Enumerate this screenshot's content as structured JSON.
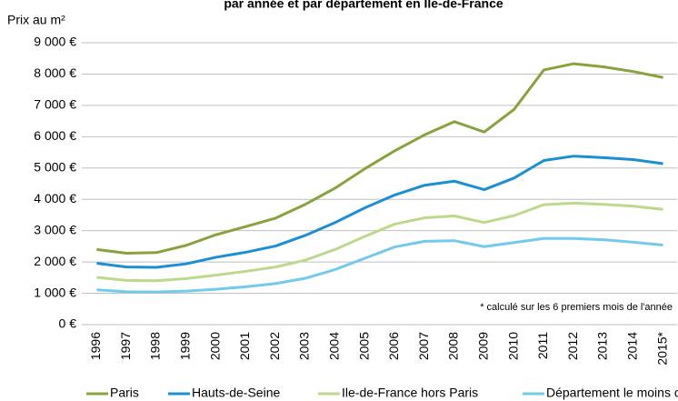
{
  "chart_data": {
    "type": "line",
    "title": "par année et par département en Ile-de-France",
    "y_label": "Prix au m²",
    "annotation": "* calculé sur les 6 premiers mois  de l'année",
    "categories": [
      "1996",
      "1997",
      "1998",
      "1999",
      "2000",
      "2001",
      "2002",
      "2003",
      "2004",
      "2005",
      "2006",
      "2007",
      "2008",
      "2009",
      "2010",
      "2011",
      "2012",
      "2013",
      "2014",
      "2015*"
    ],
    "series": [
      {
        "name": "Paris",
        "color": "#8aa23c",
        "values": [
          2400,
          2280,
          2300,
          2530,
          2870,
          3130,
          3400,
          3840,
          4360,
          4980,
          5550,
          6060,
          6480,
          6150,
          6870,
          8130,
          8330,
          8230,
          8080,
          7890
        ]
      },
      {
        "name": "Hauts-de-Seine",
        "color": "#1b8fd2",
        "values": [
          1960,
          1840,
          1830,
          1940,
          2150,
          2310,
          2510,
          2850,
          3260,
          3730,
          4140,
          4450,
          4580,
          4310,
          4680,
          5240,
          5380,
          5330,
          5270,
          5140
        ]
      },
      {
        "name": "Ile-de-France hors Paris",
        "color": "#bdd98c",
        "values": [
          1510,
          1410,
          1400,
          1470,
          1580,
          1700,
          1840,
          2060,
          2400,
          2820,
          3210,
          3410,
          3470,
          3260,
          3480,
          3830,
          3880,
          3840,
          3780,
          3680
        ]
      },
      {
        "name": "Département le moins cher",
        "color": "#72cbeb",
        "values": [
          1110,
          1050,
          1040,
          1070,
          1130,
          1210,
          1310,
          1480,
          1760,
          2120,
          2480,
          2660,
          2680,
          2490,
          2620,
          2750,
          2750,
          2710,
          2630,
          2540
        ]
      }
    ],
    "ylim": [
      0,
      9000
    ],
    "yticks": [
      {
        "value": 0,
        "label": "0 €"
      },
      {
        "value": 1000,
        "label": "1 000 €"
      },
      {
        "value": 2000,
        "label": "2 000 €"
      },
      {
        "value": 3000,
        "label": "3 000 €"
      },
      {
        "value": 4000,
        "label": "4 000 €"
      },
      {
        "value": 5000,
        "label": "5 000 €"
      },
      {
        "value": 6000,
        "label": "6 000 €"
      },
      {
        "value": 7000,
        "label": "7 000 €"
      },
      {
        "value": 8000,
        "label": "8 000 €"
      },
      {
        "value": 9000,
        "label": "9 000 €"
      }
    ],
    "grid": true
  }
}
